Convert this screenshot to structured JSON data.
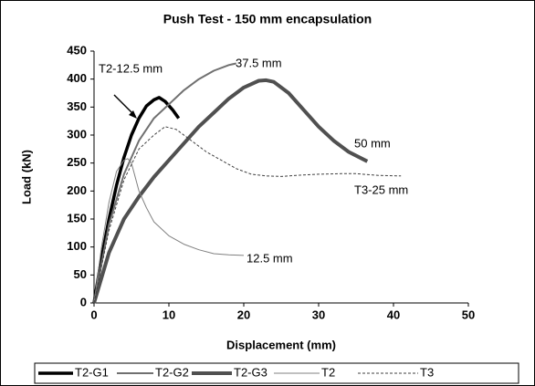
{
  "chart_data": {
    "type": "line",
    "title": "Push Test - 150 mm encapsulation",
    "x_label": "Displacement (mm)",
    "y_label": "Load (kN)",
    "xlim": [
      0,
      50
    ],
    "xticks": [
      0,
      10,
      20,
      30,
      40,
      50
    ],
    "ylim": [
      0,
      450
    ],
    "yticks": [
      0,
      50,
      100,
      150,
      200,
      250,
      300,
      350,
      400,
      450
    ],
    "grid": false,
    "legend": "bottom",
    "annotations": [
      "T2-12.5 mm",
      "37.5 mm",
      "50 mm",
      "T3-25 mm",
      "12.5 mm"
    ],
    "series": [
      {
        "name": "T2-G1",
        "color": "#000000",
        "width": 3.5,
        "dash": false,
        "x": [
          0,
          1,
          2,
          3,
          4,
          5,
          6,
          7,
          8,
          8.7,
          9.5,
          10.5,
          11.3
        ],
        "values": [
          0,
          80,
          150,
          210,
          260,
          300,
          330,
          352,
          363,
          367,
          360,
          345,
          330
        ]
      },
      {
        "name": "T2-G2",
        "color": "#707070",
        "width": 2,
        "dash": false,
        "x": [
          0,
          2,
          4,
          6,
          8,
          10,
          12,
          14,
          16,
          18,
          19
        ],
        "values": [
          0,
          140,
          230,
          290,
          330,
          355,
          380,
          400,
          415,
          425,
          428
        ]
      },
      {
        "name": "T2-G3",
        "color": "#505050",
        "width": 4,
        "dash": false,
        "x": [
          0,
          2,
          4,
          6,
          8,
          10,
          12,
          14,
          16,
          18,
          20,
          22,
          23,
          24,
          26,
          28,
          30,
          32,
          34,
          36.5
        ],
        "values": [
          0,
          90,
          150,
          190,
          225,
          255,
          285,
          315,
          340,
          365,
          385,
          397,
          398,
          395,
          375,
          345,
          315,
          290,
          270,
          253
        ]
      },
      {
        "name": "T2",
        "color": "#808080",
        "width": 1,
        "dash": false,
        "x": [
          0,
          1,
          2,
          3,
          4,
          4.5,
          5,
          6,
          7,
          8,
          10,
          12,
          14,
          16,
          18,
          20
        ],
        "values": [
          0,
          100,
          180,
          235,
          255,
          258,
          250,
          200,
          170,
          145,
          120,
          105,
          95,
          88,
          86,
          85
        ]
      },
      {
        "name": "T3",
        "color": "#404040",
        "width": 1,
        "dash": true,
        "x": [
          0,
          2,
          4,
          6,
          8,
          9.5,
          11,
          13,
          15,
          17,
          19,
          21,
          23,
          25,
          27,
          30,
          33,
          35,
          38,
          41
        ],
        "values": [
          0,
          130,
          220,
          275,
          300,
          315,
          310,
          290,
          270,
          255,
          240,
          230,
          227,
          226,
          228,
          230,
          231,
          231,
          228,
          227
        ]
      }
    ]
  }
}
